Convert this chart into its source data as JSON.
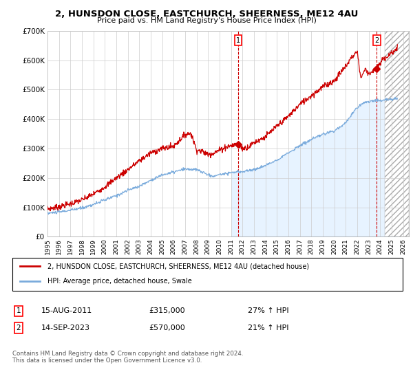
{
  "title": "2, HUNSDON CLOSE, EASTCHURCH, SHEERNESS, ME12 4AU",
  "subtitle": "Price paid vs. HM Land Registry's House Price Index (HPI)",
  "ylim": [
    0,
    700000
  ],
  "yticks": [
    0,
    100000,
    200000,
    300000,
    400000,
    500000,
    600000,
    700000
  ],
  "xlim_start": 1995.0,
  "xlim_end": 2026.5,
  "hpi_color": "#7aabdc",
  "hpi_fill_color": "#ddeeff",
  "price_color": "#cc0000",
  "annotation_color": "#cc0000",
  "point1_x": 2011.62,
  "point1_y": 315000,
  "point1_label": "1",
  "point2_x": 2023.71,
  "point2_y": 570000,
  "point2_label": "2",
  "legend_line1": "2, HUNSDON CLOSE, EASTCHURCH, SHEERNESS, ME12 4AU (detached house)",
  "legend_line2": "HPI: Average price, detached house, Swale",
  "table_row1_num": "1",
  "table_row1_date": "15-AUG-2011",
  "table_row1_price": "£315,000",
  "table_row1_hpi": "27% ↑ HPI",
  "table_row2_num": "2",
  "table_row2_date": "14-SEP-2023",
  "table_row2_price": "£570,000",
  "table_row2_hpi": "21% ↑ HPI",
  "footer": "Contains HM Land Registry data © Crown copyright and database right 2024.\nThis data is licensed under the Open Government Licence v3.0.",
  "background_color": "#ffffff",
  "plot_bg_color": "#ffffff",
  "grid_color": "#cccccc",
  "hatch_start": 2024.4
}
